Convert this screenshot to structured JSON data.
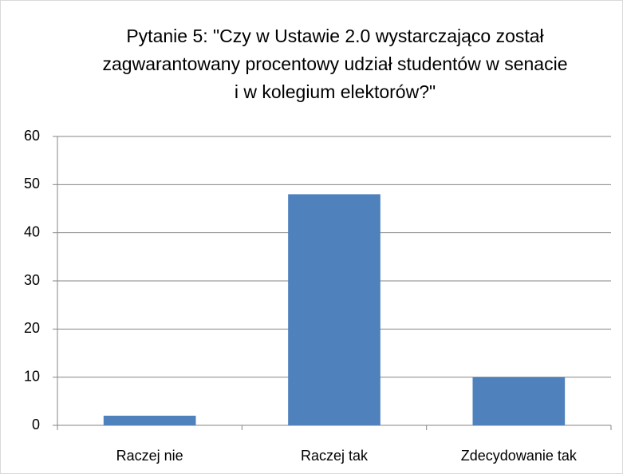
{
  "chart_data": {
    "type": "bar",
    "title": "Pytanie 5: \"Czy w Ustawie 2.0 wystarczająco został zagwarantowany procentowy udział studentów w senacie i w kolegium elektorów?\"",
    "categories": [
      "Raczej nie",
      "Raczej tak",
      "Zdecydowanie tak"
    ],
    "values": [
      2,
      48,
      10
    ],
    "color": "#4f81bd",
    "ylim": [
      0,
      60
    ],
    "yticks": [
      0,
      10,
      20,
      30,
      40,
      50,
      60
    ],
    "grid": true
  }
}
